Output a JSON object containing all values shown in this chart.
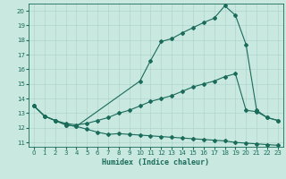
{
  "xlabel": "Humidex (Indice chaleur)",
  "background_color": "#c8e8e0",
  "grid_color": "#b0d4cc",
  "line_color": "#1a6b5a",
  "xlim": [
    -0.5,
    23.5
  ],
  "ylim": [
    10.7,
    20.5
  ],
  "yticks": [
    11,
    12,
    13,
    14,
    15,
    16,
    17,
    18,
    19,
    20
  ],
  "xticks": [
    0,
    1,
    2,
    3,
    4,
    5,
    6,
    7,
    8,
    9,
    10,
    11,
    12,
    13,
    14,
    15,
    16,
    17,
    18,
    19,
    20,
    21,
    22,
    23
  ],
  "line1_x": [
    0,
    1,
    2,
    3,
    4,
    5,
    6,
    7,
    8,
    9,
    10,
    11,
    12,
    13,
    14,
    15,
    16,
    17,
    18,
    19,
    20,
    21,
    22,
    23
  ],
  "line1_y": [
    13.5,
    12.8,
    12.5,
    12.2,
    12.1,
    11.9,
    11.7,
    11.55,
    11.6,
    11.55,
    11.5,
    11.45,
    11.4,
    11.35,
    11.3,
    11.25,
    11.2,
    11.15,
    11.1,
    11.0,
    10.95,
    10.9,
    10.85,
    10.8
  ],
  "line2_x": [
    0,
    1,
    2,
    3,
    4,
    5,
    6,
    7,
    8,
    9,
    10,
    11,
    12,
    13,
    14,
    15,
    16,
    17,
    18,
    19,
    20,
    21,
    22,
    23
  ],
  "line2_y": [
    13.5,
    12.8,
    12.5,
    12.3,
    12.2,
    12.3,
    12.5,
    12.7,
    13.0,
    13.2,
    13.5,
    13.8,
    14.0,
    14.2,
    14.5,
    14.8,
    15.0,
    15.2,
    15.5,
    15.7,
    13.2,
    13.1,
    12.7,
    12.5
  ],
  "line3_x": [
    0,
    1,
    2,
    3,
    4,
    10,
    11,
    12,
    13,
    14,
    15,
    16,
    17,
    18,
    19,
    20,
    21,
    22,
    23
  ],
  "line3_y": [
    13.5,
    12.8,
    12.5,
    12.2,
    12.1,
    15.2,
    16.6,
    17.9,
    18.1,
    18.5,
    18.85,
    19.2,
    19.5,
    20.35,
    19.7,
    17.7,
    13.2,
    12.7,
    12.5
  ]
}
